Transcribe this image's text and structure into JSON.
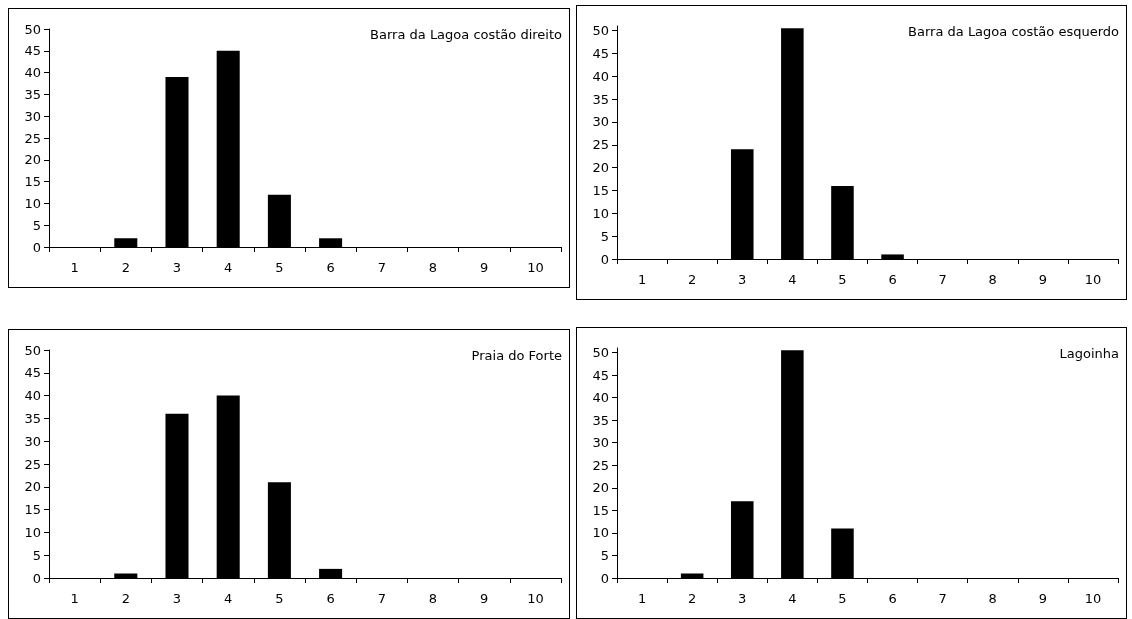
{
  "chart_data": [
    {
      "type": "bar",
      "title": "Barra da Lagoa costão direito",
      "categories": [
        "1",
        "2",
        "3",
        "4",
        "5",
        "6",
        "7",
        "8",
        "9",
        "10"
      ],
      "values": [
        0,
        2,
        39,
        45,
        12,
        2,
        0,
        0,
        0,
        0
      ],
      "color": "#000000",
      "ylim": [
        0,
        50
      ],
      "yticks": [
        0,
        5,
        10,
        15,
        20,
        25,
        30,
        35,
        40,
        45,
        50
      ]
    },
    {
      "type": "bar",
      "title": "Barra da Lagoa costão esquerdo",
      "categories": [
        "1",
        "2",
        "3",
        "4",
        "5",
        "6",
        "7",
        "8",
        "9",
        "10"
      ],
      "values": [
        0,
        0,
        24,
        50.5,
        16,
        1,
        0,
        0,
        0,
        0
      ],
      "color": "#000000",
      "ylim": [
        0,
        51
      ],
      "yticks": [
        0,
        5,
        10,
        15,
        20,
        25,
        30,
        35,
        40,
        45,
        50
      ]
    },
    {
      "type": "bar",
      "title": "Praia do Forte",
      "categories": [
        "1",
        "2",
        "3",
        "4",
        "5",
        "6",
        "7",
        "8",
        "9",
        "10"
      ],
      "values": [
        0,
        1,
        36,
        40,
        21,
        2,
        0,
        0,
        0,
        0
      ],
      "color": "#000000",
      "ylim": [
        0,
        50
      ],
      "yticks": [
        0,
        5,
        10,
        15,
        20,
        25,
        30,
        35,
        40,
        45,
        50
      ]
    },
    {
      "type": "bar",
      "title": "Lagoinha",
      "categories": [
        "1",
        "2",
        "3",
        "4",
        "5",
        "6",
        "7",
        "8",
        "9",
        "10"
      ],
      "values": [
        0,
        1,
        17,
        50.5,
        11,
        0,
        0,
        0,
        0,
        0
      ],
      "color": "#000000",
      "ylim": [
        0,
        51
      ],
      "yticks": [
        0,
        5,
        10,
        15,
        20,
        25,
        30,
        35,
        40,
        45,
        50
      ]
    }
  ]
}
